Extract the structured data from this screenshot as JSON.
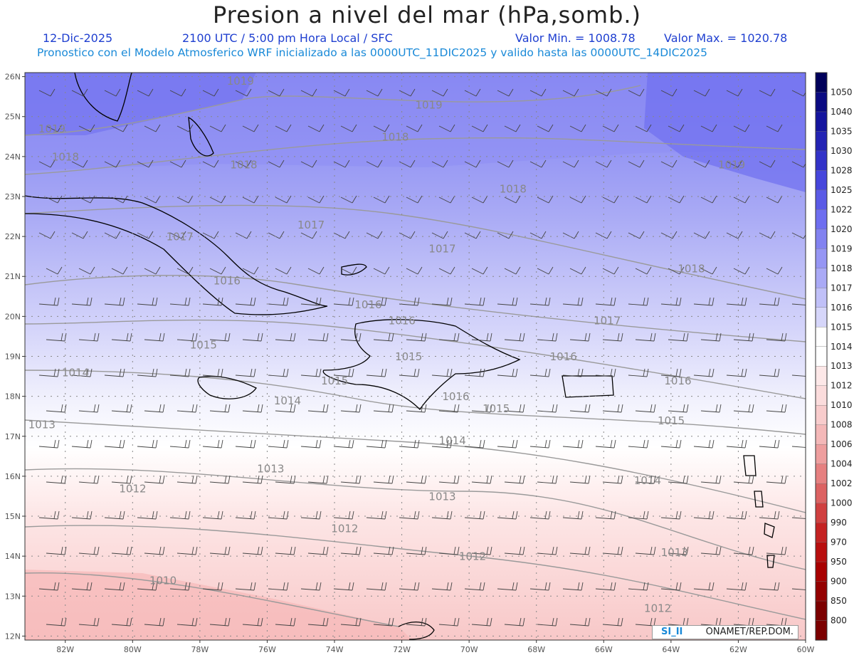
{
  "header": {
    "title": "Presion a nivel del mar (hPa,somb.)",
    "date": "12-Dic-2025",
    "time_info": "2100 UTC / 5:00 pm Hora Local / SFC",
    "min_value": "Valor Min. = 1008.78",
    "max_value": "Valor Max. = 1020.78",
    "forecast_info": "Pronostico con el Modelo Atmosferico WRF inicializado a las 0000UTC_11DIC2025 y valido hasta las  0000UTC_14DIC2025"
  },
  "axes": {
    "lat_labels": [
      "26N",
      "25N",
      "24N",
      "23N",
      "22N",
      "21N",
      "20N",
      "19N",
      "18N",
      "17N",
      "16N",
      "15N",
      "14N",
      "13N",
      "12N"
    ],
    "lon_labels": [
      "82W",
      "80W",
      "78W",
      "76W",
      "74W",
      "72W",
      "70W",
      "68W",
      "66W",
      "64W",
      "62W",
      "60W"
    ]
  },
  "isobar_labels": [
    {
      "text": "1019",
      "lat": 25.8,
      "lon": -77.2
    },
    {
      "text": "1019",
      "lat": 24.6,
      "lon": -82.8
    },
    {
      "text": "1019",
      "lat": 25.2,
      "lon": -71.6
    },
    {
      "text": "1019",
      "lat": 23.7,
      "lon": -62.6
    },
    {
      "text": "1018",
      "lat": 23.9,
      "lon": -82.4
    },
    {
      "text": "1018",
      "lat": 23.7,
      "lon": -77.1
    },
    {
      "text": "1018",
      "lat": 24.4,
      "lon": -72.6
    },
    {
      "text": "1018",
      "lat": 23.1,
      "lon": -69.1
    },
    {
      "text": "1018",
      "lat": 21.1,
      "lon": -63.8
    },
    {
      "text": "1017",
      "lat": 21.9,
      "lon": -79.0
    },
    {
      "text": "1017",
      "lat": 22.2,
      "lon": -75.1
    },
    {
      "text": "1017",
      "lat": 21.6,
      "lon": -71.2
    },
    {
      "text": "1017",
      "lat": 19.8,
      "lon": -66.3
    },
    {
      "text": "1016",
      "lat": 20.8,
      "lon": -77.6
    },
    {
      "text": "1016",
      "lat": 20.2,
      "lon": -73.4
    },
    {
      "text": "1016",
      "lat": 19.8,
      "lon": -72.4
    },
    {
      "text": "1016",
      "lat": 18.9,
      "lon": -67.6
    },
    {
      "text": "1016",
      "lat": 18.3,
      "lon": -64.2
    },
    {
      "text": "1016",
      "lat": 17.9,
      "lon": -70.8
    },
    {
      "text": "1015",
      "lat": 19.2,
      "lon": -78.3
    },
    {
      "text": "1015",
      "lat": 18.9,
      "lon": -72.2
    },
    {
      "text": "1015",
      "lat": 18.3,
      "lon": -74.4
    },
    {
      "text": "1015",
      "lat": 17.6,
      "lon": -69.6
    },
    {
      "text": "1015",
      "lat": 17.3,
      "lon": -64.4
    },
    {
      "text": "1014",
      "lat": 18.5,
      "lon": -82.1
    },
    {
      "text": "1014",
      "lat": 17.8,
      "lon": -75.8
    },
    {
      "text": "1014",
      "lat": 16.8,
      "lon": -70.9
    },
    {
      "text": "1014",
      "lat": 15.8,
      "lon": -65.1
    },
    {
      "text": "1013",
      "lat": 17.2,
      "lon": -83.1
    },
    {
      "text": "1013",
      "lat": 16.1,
      "lon": -76.3
    },
    {
      "text": "1013",
      "lat": 15.4,
      "lon": -71.2
    },
    {
      "text": "1013",
      "lat": 14.0,
      "lon": -64.3
    },
    {
      "text": "1012",
      "lat": 15.6,
      "lon": -80.4
    },
    {
      "text": "1012",
      "lat": 14.6,
      "lon": -74.1
    },
    {
      "text": "1012",
      "lat": 12.6,
      "lon": -64.8
    },
    {
      "text": "1012",
      "lat": 13.9,
      "lon": -70.3
    },
    {
      "text": "1010",
      "lat": 13.3,
      "lon": -79.5
    }
  ],
  "legend": {
    "levels": [
      "1050",
      "1040",
      "1035",
      "1030",
      "1028",
      "1025",
      "1022",
      "1020",
      "1019",
      "1018",
      "1017",
      "1016",
      "1015",
      "1014",
      "1013",
      "1012",
      "1010",
      "1008",
      "1006",
      "1004",
      "1002",
      "1000",
      "990",
      "970",
      "950",
      "900",
      "850",
      "800"
    ],
    "colors": [
      "#00005a",
      "#0a0a82",
      "#14149e",
      "#2323b4",
      "#3232c8",
      "#4646dc",
      "#5a5ae6",
      "#6e6ef0",
      "#8282f0",
      "#9696f4",
      "#aaaaf6",
      "#c0c0f8",
      "#d6d6fa",
      "#ffffff",
      "#ffffff",
      "#fde8e8",
      "#fbdcdc",
      "#f8cccc",
      "#f4b8b8",
      "#ee9e9e",
      "#e68080",
      "#dc6262",
      "#d04040",
      "#c42222",
      "#b80e0e",
      "#a80000",
      "#940000",
      "#7c0000"
    ]
  },
  "badge": {
    "logo": "SI_II",
    "org": "ONAMET/REP.DOM."
  }
}
